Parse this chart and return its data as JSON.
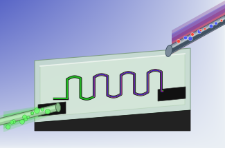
{
  "fig_width": 3.25,
  "fig_height": 2.15,
  "dpi": 100,
  "bg_blue_tl": [
    0.35,
    0.4,
    0.78
  ],
  "bg_white_br": [
    0.92,
    0.94,
    0.96
  ],
  "chip_face_color": "#c8ddd0",
  "chip_edge_color": "#7a9a80",
  "chip_bottom_color": "#2a2a2a",
  "chip_groove_color": "#1a1a1a",
  "wg_green": "#22bb22",
  "wg_red": "#cc2222",
  "wg_blue": "#2222cc",
  "wg_pink": "#cc44cc",
  "wg_dark": "#111111",
  "fiber_green_body": "#aaddaa",
  "fiber_green_tip": "#88cc88",
  "fiber_gray_body": "#9aabab",
  "fiber_gray_dark": "#404858",
  "fiber_gray_light": "#c0cccc",
  "beam_green": "#33dd33",
  "beam_red": "#dd2222",
  "beam_blue": "#2222dd",
  "dot_green": "#66ff66",
  "dot_blue": "#4455ff",
  "dot_red": "#ff4433"
}
